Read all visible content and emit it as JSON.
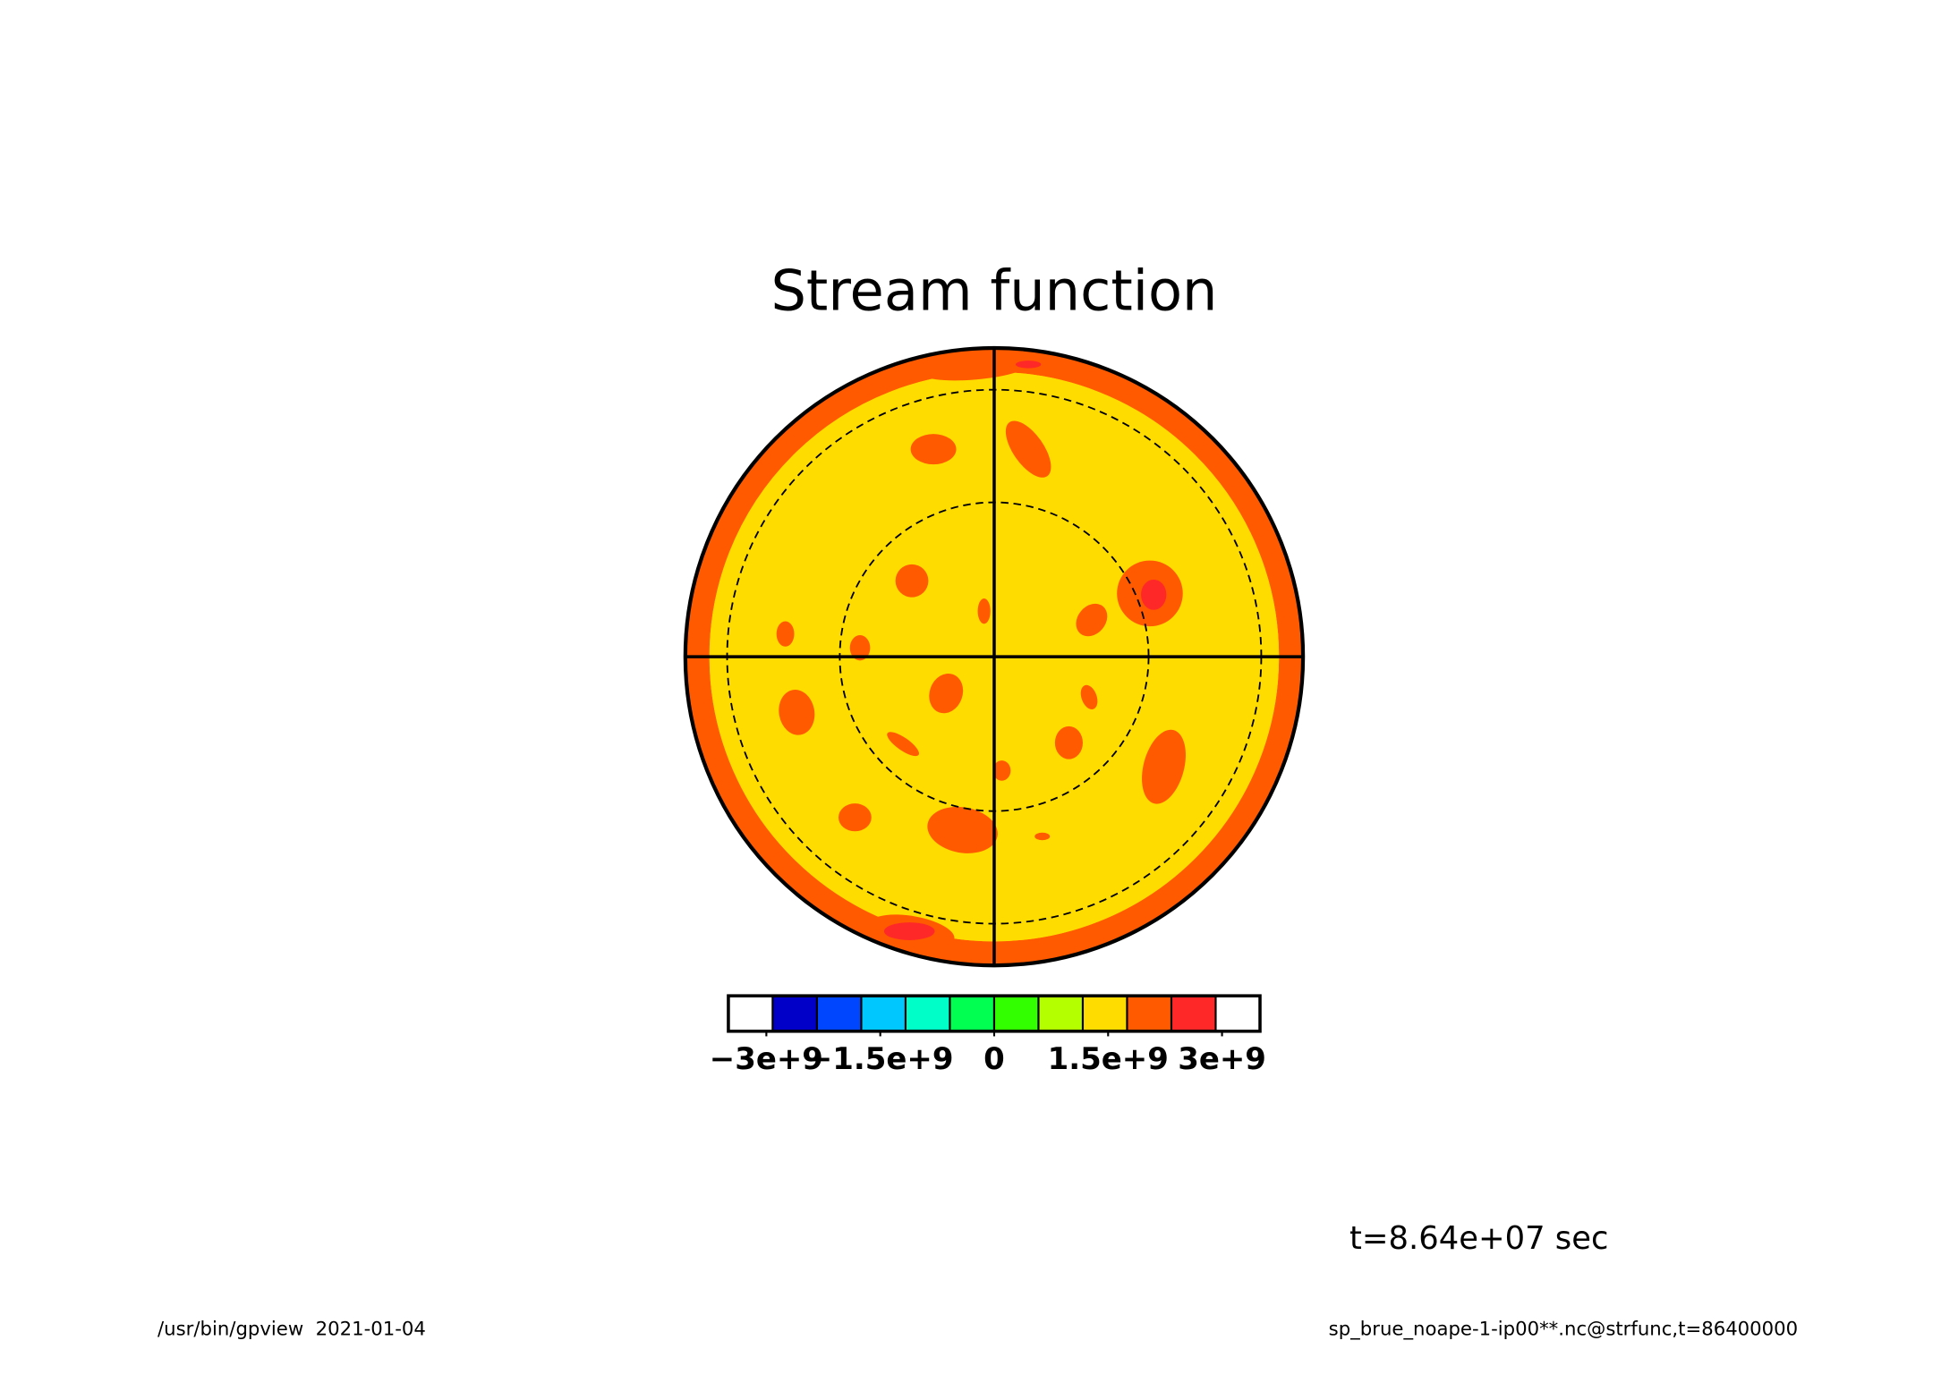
{
  "chart_data": {
    "type": "contour",
    "title": "Stream function",
    "colorbar": {
      "colors": [
        "#ffffff",
        "#0000c8",
        "#0046ff",
        "#00c8ff",
        "#00ffc8",
        "#00ff50",
        "#32ff00",
        "#b4ff00",
        "#ffdc00",
        "#ff5a00",
        "#ff2828",
        "#ffffff"
      ],
      "xlim": [
        -3500000000,
        3500000000
      ],
      "xticks": [
        {
          "value": -3000000000,
          "label": "−3e+9"
        },
        {
          "value": -1500000000,
          "label": "−1.5e+9"
        },
        0,
        {
          "value": 1500000000,
          "label": "1.5e+9"
        },
        {
          "value": 3000000000,
          "label": "3e+9"
        }
      ]
    },
    "annotations": [
      "t=8.64e+07 sec",
      "/usr/bin/gpview  2021-01-04",
      "sp_brue_noape-1-ip00**.nc@strfunc,t=86400000"
    ]
  }
}
